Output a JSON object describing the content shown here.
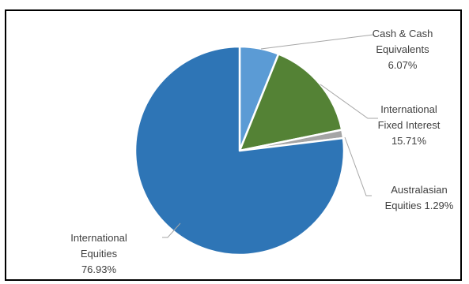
{
  "chart_data": {
    "type": "pie",
    "title": "",
    "legend": "none",
    "start": "top, clockwise",
    "slices": [
      {
        "label_lines": [
          "Cash & Cash",
          "Equivalents",
          "6.07%"
        ],
        "name": "Cash & Cash Equivalents",
        "value": 6.07,
        "color": "#5B9BD5"
      },
      {
        "label_lines": [
          "International",
          "Fixed Interest",
          "15.71%"
        ],
        "name": "International Fixed Interest",
        "value": 15.71,
        "color": "#548235"
      },
      {
        "label_lines": [
          "Australasian",
          "Equities 1.29%"
        ],
        "name": "Australasian Equities",
        "value": 1.29,
        "color": "#A5A5A5"
      },
      {
        "label_lines": [
          "International",
          "Equities",
          "76.93%"
        ],
        "name": "International Equities",
        "value": 76.93,
        "color": "#2E75B6"
      }
    ]
  }
}
